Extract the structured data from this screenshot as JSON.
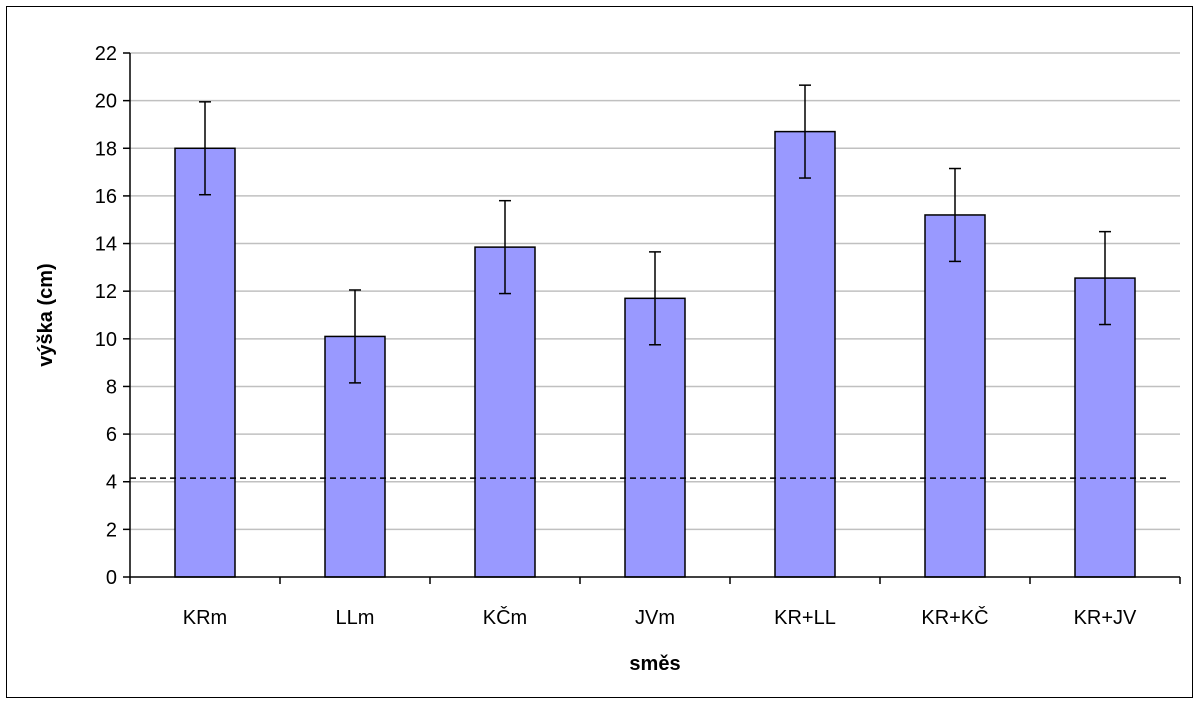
{
  "chart_data": {
    "type": "bar",
    "title": "",
    "xlabel": "směs",
    "ylabel": "výška (cm)",
    "categories": [
      "KRm",
      "LLm",
      "KČm",
      "JVm",
      "KR+LL",
      "KR+KČ",
      "KR+JV"
    ],
    "values": [
      18.0,
      10.1,
      13.85,
      11.7,
      18.7,
      15.2,
      12.55
    ],
    "error": [
      1.95,
      1.95,
      1.95,
      1.95,
      1.95,
      1.95,
      1.95
    ],
    "ylim": [
      0,
      22
    ],
    "yticks": [
      0,
      2,
      4,
      6,
      8,
      10,
      12,
      14,
      16,
      18,
      20,
      22
    ],
    "reference_line": {
      "y": 4.15,
      "style": "dashed"
    },
    "grid": true,
    "legend": "none",
    "colors": {
      "bar_fill": "#9999ff",
      "bar_stroke": "#000000",
      "grid": "#c0c0c0",
      "axis": "#000000",
      "reference_line": "#000000"
    }
  }
}
